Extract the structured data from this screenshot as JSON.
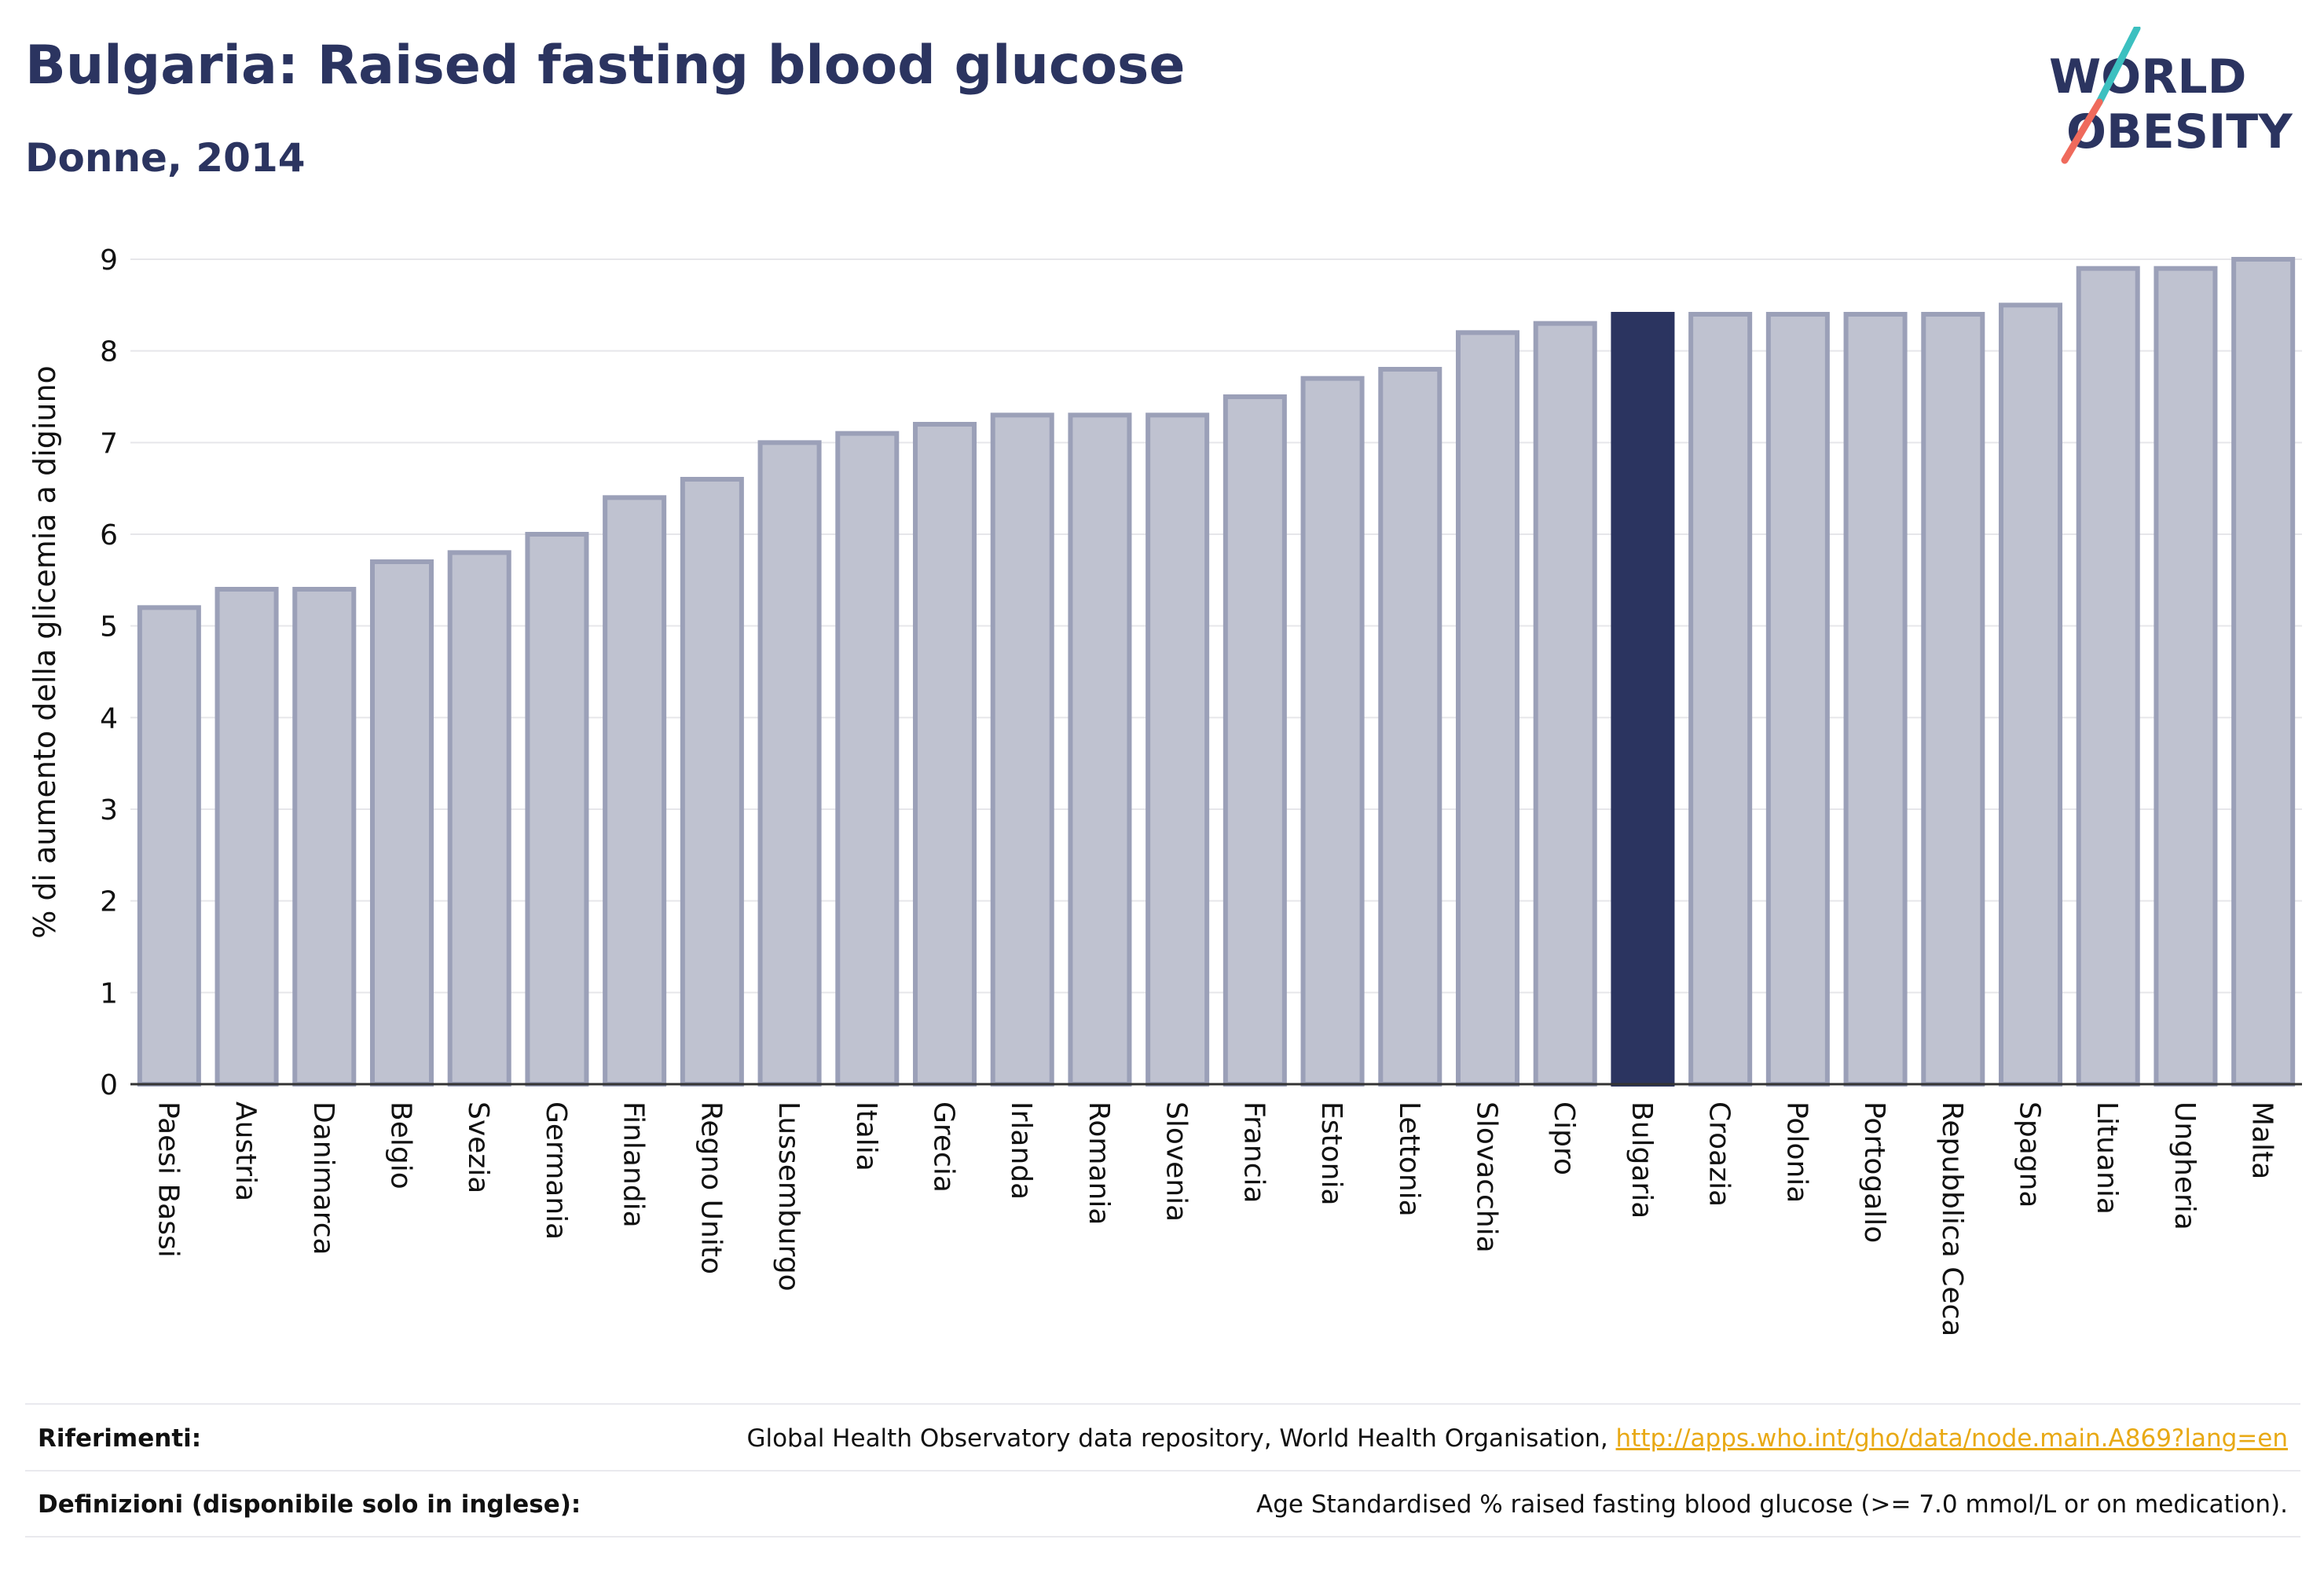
{
  "header": {
    "title": "Bulgaria: Raised fasting blood glucose",
    "subtitle": "Donne, 2014"
  },
  "logo": {
    "line1": "WORLD",
    "line2": "OBESITY"
  },
  "colors": {
    "bar_fill": "#bfc2d0",
    "bar_stroke": "#9ba0b8",
    "highlight": "#2b3460",
    "title": "#2b3460",
    "logo_teal": "#3cc0c0",
    "logo_coral": "#ef6a5c",
    "link": "#e8a915"
  },
  "chart_data": {
    "type": "bar",
    "title": "Bulgaria: Raised fasting blood glucose",
    "subtitle": "Donne, 2014",
    "xlabel": "",
    "ylabel": "% di aumento della glicemia a digiuno",
    "ylim": [
      0,
      9
    ],
    "yticks": [
      0,
      1,
      2,
      3,
      4,
      5,
      6,
      7,
      8,
      9
    ],
    "grid": true,
    "highlight": "Bulgaria",
    "categories": [
      "Paesi Bassi",
      "Austria",
      "Danimarca",
      "Belgio",
      "Svezia",
      "Germania",
      "Finlandia",
      "Regno Unito",
      "Lussemburgo",
      "Italia",
      "Grecia",
      "Irlanda",
      "Romania",
      "Slovenia",
      "Francia",
      "Estonia",
      "Lettonia",
      "Slovacchia",
      "Cipro",
      "Bulgaria",
      "Croazia",
      "Polonia",
      "Portogallo",
      "Repubblica Ceca",
      "Spagna",
      "Lituania",
      "Ungheria",
      "Malta"
    ],
    "values": [
      5.2,
      5.4,
      5.4,
      5.7,
      5.8,
      6.0,
      6.4,
      6.6,
      7.0,
      7.1,
      7.2,
      7.3,
      7.3,
      7.3,
      7.5,
      7.7,
      7.8,
      8.2,
      8.3,
      8.4,
      8.4,
      8.4,
      8.4,
      8.4,
      8.5,
      8.9,
      8.9,
      9.0
    ]
  },
  "footer": {
    "references_label": "Riferimenti:",
    "references_text": "Global Health Observatory data repository, World Health Organisation, ",
    "references_link": "http://apps.who.int/gho/data/node.main.A869?lang=en",
    "definitions_label": "Definizioni (disponibile solo in inglese):",
    "definitions_text": "Age Standardised % raised fasting blood glucose (>= 7.0 mmol/L or on medication)."
  }
}
